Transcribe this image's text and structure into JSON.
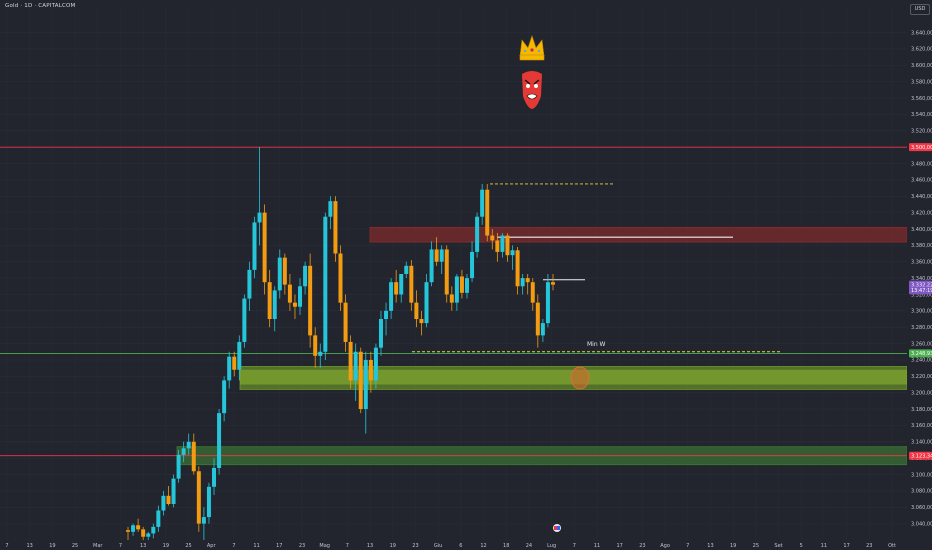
{
  "header": {
    "symbol_title": "Gold · 1D · CAPITALCOM",
    "currency": "USD"
  },
  "chart_data": {
    "type": "candlestick",
    "ylim": [
      3020,
      3670
    ],
    "y_ticks": [
      "3.040,00",
      "3.060,00",
      "3.080,00",
      "3.100,00",
      "3.120,00",
      "3.140,00",
      "3.160,00",
      "3.180,00",
      "3.200,00",
      "3.220,00",
      "3.240,00",
      "3.260,00",
      "3.280,00",
      "3.300,00",
      "3.320,00",
      "3.340,00",
      "3.360,00",
      "3.380,00",
      "3.400,00",
      "3.420,00",
      "3.440,00",
      "3.460,00",
      "3.480,00",
      "3.500,00",
      "3.520,00",
      "3.540,00",
      "3.560,00",
      "3.580,00",
      "3.600,00",
      "3.620,00",
      "3.640,00"
    ],
    "x_ticks": [
      "7",
      "13",
      "19",
      "25",
      "Mar",
      "7",
      "13",
      "19",
      "25",
      "Apr",
      "7",
      "11",
      "17",
      "23",
      "Mag",
      "7",
      "13",
      "19",
      "23",
      "Giu",
      "6",
      "12",
      "18",
      "24",
      "Lug",
      "7",
      "11",
      "17",
      "23",
      "Ago",
      "7",
      "13",
      "19",
      "25",
      "Set",
      "5",
      "11",
      "17",
      "23",
      "Ott"
    ],
    "price_tags": [
      {
        "text": "3.500,00",
        "value": 3500,
        "color": "#f23645"
      },
      {
        "text": "3.332,22",
        "value": 3332,
        "color": "#7e57c2"
      },
      {
        "text": "13:47:19",
        "value": 3325,
        "color": "#7e57c2"
      },
      {
        "text": "3.248,93",
        "value": 3248,
        "color": "#4caf50"
      },
      {
        "text": "3.123,34",
        "value": 3123,
        "color": "#f23645"
      }
    ],
    "horizontal_lines": [
      {
        "value": 3500,
        "color": "#f23645"
      },
      {
        "value": 3248,
        "color": "#4caf50"
      },
      {
        "value": 3123,
        "color": "#f23645"
      }
    ],
    "zones": [
      {
        "from": 3384,
        "to": 3402,
        "color": "#8b2b2b"
      },
      {
        "from": 3204,
        "to": 3232,
        "color": "#6e9a2a"
      },
      {
        "from": 3112,
        "to": 3134,
        "color": "#3f7a34"
      }
    ],
    "annotations": [
      {
        "text": "Min W",
        "value": 3258
      }
    ],
    "candles": [
      [
        3032,
        3036,
        3020,
        3030
      ],
      [
        3030,
        3040,
        3025,
        3038
      ],
      [
        3038,
        3046,
        3030,
        3033
      ],
      [
        3033,
        3036,
        3020,
        3024
      ],
      [
        3024,
        3030,
        3018,
        3028
      ],
      [
        3028,
        3040,
        3022,
        3036
      ],
      [
        3036,
        3062,
        3030,
        3056
      ],
      [
        3056,
        3080,
        3050,
        3074
      ],
      [
        3074,
        3086,
        3062,
        3064
      ],
      [
        3064,
        3100,
        3060,
        3095
      ],
      [
        3095,
        3130,
        3090,
        3124
      ],
      [
        3124,
        3140,
        3115,
        3132
      ],
      [
        3132,
        3150,
        3124,
        3140
      ],
      [
        3140,
        3150,
        3100,
        3104
      ],
      [
        3104,
        3110,
        3030,
        3040
      ],
      [
        3040,
        3060,
        3020,
        3048
      ],
      [
        3048,
        3090,
        3040,
        3085
      ],
      [
        3085,
        3120,
        3075,
        3108
      ],
      [
        3108,
        3180,
        3100,
        3175
      ],
      [
        3175,
        3220,
        3165,
        3215
      ],
      [
        3215,
        3250,
        3205,
        3244
      ],
      [
        3244,
        3250,
        3220,
        3228
      ],
      [
        3228,
        3270,
        3215,
        3262
      ],
      [
        3262,
        3320,
        3255,
        3315
      ],
      [
        3315,
        3360,
        3300,
        3350
      ],
      [
        3350,
        3415,
        3340,
        3408
      ],
      [
        3408,
        3500,
        3380,
        3420
      ],
      [
        3420,
        3430,
        3320,
        3335
      ],
      [
        3335,
        3350,
        3280,
        3290
      ],
      [
        3290,
        3330,
        3275,
        3325
      ],
      [
        3325,
        3375,
        3315,
        3365
      ],
      [
        3365,
        3370,
        3320,
        3332
      ],
      [
        3332,
        3345,
        3300,
        3310
      ],
      [
        3310,
        3320,
        3290,
        3305
      ],
      [
        3305,
        3340,
        3295,
        3330
      ],
      [
        3330,
        3360,
        3320,
        3355
      ],
      [
        3355,
        3370,
        3255,
        3270
      ],
      [
        3270,
        3280,
        3230,
        3245
      ],
      [
        3245,
        3260,
        3230,
        3250
      ],
      [
        3250,
        3420,
        3240,
        3415
      ],
      [
        3415,
        3440,
        3400,
        3434
      ],
      [
        3434,
        3440,
        3360,
        3370
      ],
      [
        3370,
        3380,
        3300,
        3310
      ],
      [
        3310,
        3320,
        3250,
        3262
      ],
      [
        3262,
        3270,
        3205,
        3215
      ],
      [
        3215,
        3260,
        3190,
        3250
      ],
      [
        3250,
        3255,
        3175,
        3180
      ],
      [
        3180,
        3250,
        3150,
        3240
      ],
      [
        3240,
        3250,
        3200,
        3215
      ],
      [
        3215,
        3260,
        3205,
        3255
      ],
      [
        3255,
        3300,
        3245,
        3290
      ],
      [
        3290,
        3310,
        3270,
        3300
      ],
      [
        3300,
        3340,
        3290,
        3335
      ],
      [
        3335,
        3350,
        3310,
        3320
      ],
      [
        3320,
        3345,
        3310,
        3345
      ],
      [
        3345,
        3360,
        3340,
        3355
      ],
      [
        3355,
        3362,
        3300,
        3310
      ],
      [
        3310,
        3325,
        3280,
        3290
      ],
      [
        3290,
        3300,
        3270,
        3285
      ],
      [
        3285,
        3345,
        3280,
        3335
      ],
      [
        3335,
        3385,
        3330,
        3375
      ],
      [
        3375,
        3390,
        3355,
        3360
      ],
      [
        3360,
        3380,
        3345,
        3375
      ],
      [
        3375,
        3380,
        3310,
        3320
      ],
      [
        3320,
        3330,
        3300,
        3310
      ],
      [
        3310,
        3345,
        3300,
        3342
      ],
      [
        3342,
        3350,
        3315,
        3322
      ],
      [
        3322,
        3345,
        3315,
        3340
      ],
      [
        3340,
        3385,
        3335,
        3372
      ],
      [
        3372,
        3420,
        3365,
        3415
      ],
      [
        3415,
        3455,
        3405,
        3448
      ],
      [
        3448,
        3455,
        3385,
        3392
      ],
      [
        3392,
        3400,
        3375,
        3386
      ],
      [
        3386,
        3395,
        3360,
        3372
      ],
      [
        3372,
        3395,
        3365,
        3392
      ],
      [
        3392,
        3395,
        3360,
        3368
      ],
      [
        3368,
        3380,
        3350,
        3374
      ],
      [
        3374,
        3378,
        3320,
        3330
      ],
      [
        3330,
        3345,
        3320,
        3340
      ],
      [
        3340,
        3345,
        3320,
        3335
      ],
      [
        3335,
        3340,
        3300,
        3310
      ],
      [
        3310,
        3320,
        3255,
        3270
      ],
      [
        3270,
        3290,
        3262,
        3285
      ],
      [
        3285,
        3345,
        3280,
        3335
      ],
      [
        3335,
        3345,
        3325,
        3332
      ]
    ]
  }
}
